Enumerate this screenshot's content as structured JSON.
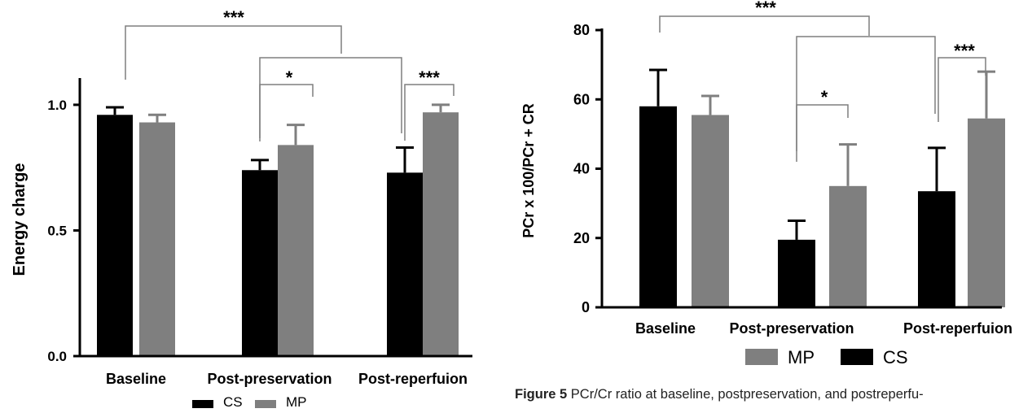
{
  "colors": {
    "CS": "#000000",
    "MP": "#7f7f7f",
    "axis": "#000000",
    "bracket": "#7f7f7f"
  },
  "chart_data": [
    {
      "type": "bar",
      "title": "",
      "xlabel": "",
      "ylabel": "Energy charge",
      "ylim": [
        0.0,
        1.1
      ],
      "yticks": [
        0.0,
        0.5,
        1.0
      ],
      "ytick_labels": [
        "0.0",
        "0.5",
        "1.0"
      ],
      "categories": [
        "Baseline",
        "Post-preservation",
        "Post-reperfuion"
      ],
      "series": [
        {
          "name": "CS",
          "values": [
            0.96,
            0.74,
            0.73
          ],
          "errors": [
            0.03,
            0.04,
            0.1
          ]
        },
        {
          "name": "MP",
          "values": [
            0.93,
            0.84,
            0.97
          ],
          "errors": [
            0.03,
            0.08,
            0.03
          ]
        }
      ],
      "legend": {
        "position": "bottom",
        "entries": [
          "CS",
          "MP"
        ]
      },
      "grid": false,
      "annotations": [
        "***",
        "*",
        "***"
      ]
    },
    {
      "type": "bar",
      "title": "",
      "xlabel": "",
      "ylabel": "PCr x 100/PCr + CR",
      "ylim": [
        0,
        80
      ],
      "yticks": [
        0,
        20,
        40,
        60,
        80
      ],
      "ytick_labels": [
        "0",
        "20",
        "40",
        "60",
        "80"
      ],
      "categories": [
        "Baseline",
        "Post-preservation",
        "Post-reperfuion"
      ],
      "series": [
        {
          "name": "CS",
          "values": [
            58,
            19.5,
            33.5
          ],
          "errors": [
            10.5,
            5.5,
            12.5
          ]
        },
        {
          "name": "MP",
          "values": [
            55.5,
            35,
            54.5
          ],
          "errors": [
            5.5,
            12,
            13.5
          ]
        }
      ],
      "legend": {
        "position": "bottom",
        "entries": [
          "MP",
          "CS"
        ]
      },
      "grid": false,
      "annotations": [
        "***",
        "*",
        "***"
      ]
    }
  ],
  "caption": {
    "label": "Figure 5",
    "text": " PCr/Cr ratio at baseline, postpreservation, and postreperfu-"
  }
}
